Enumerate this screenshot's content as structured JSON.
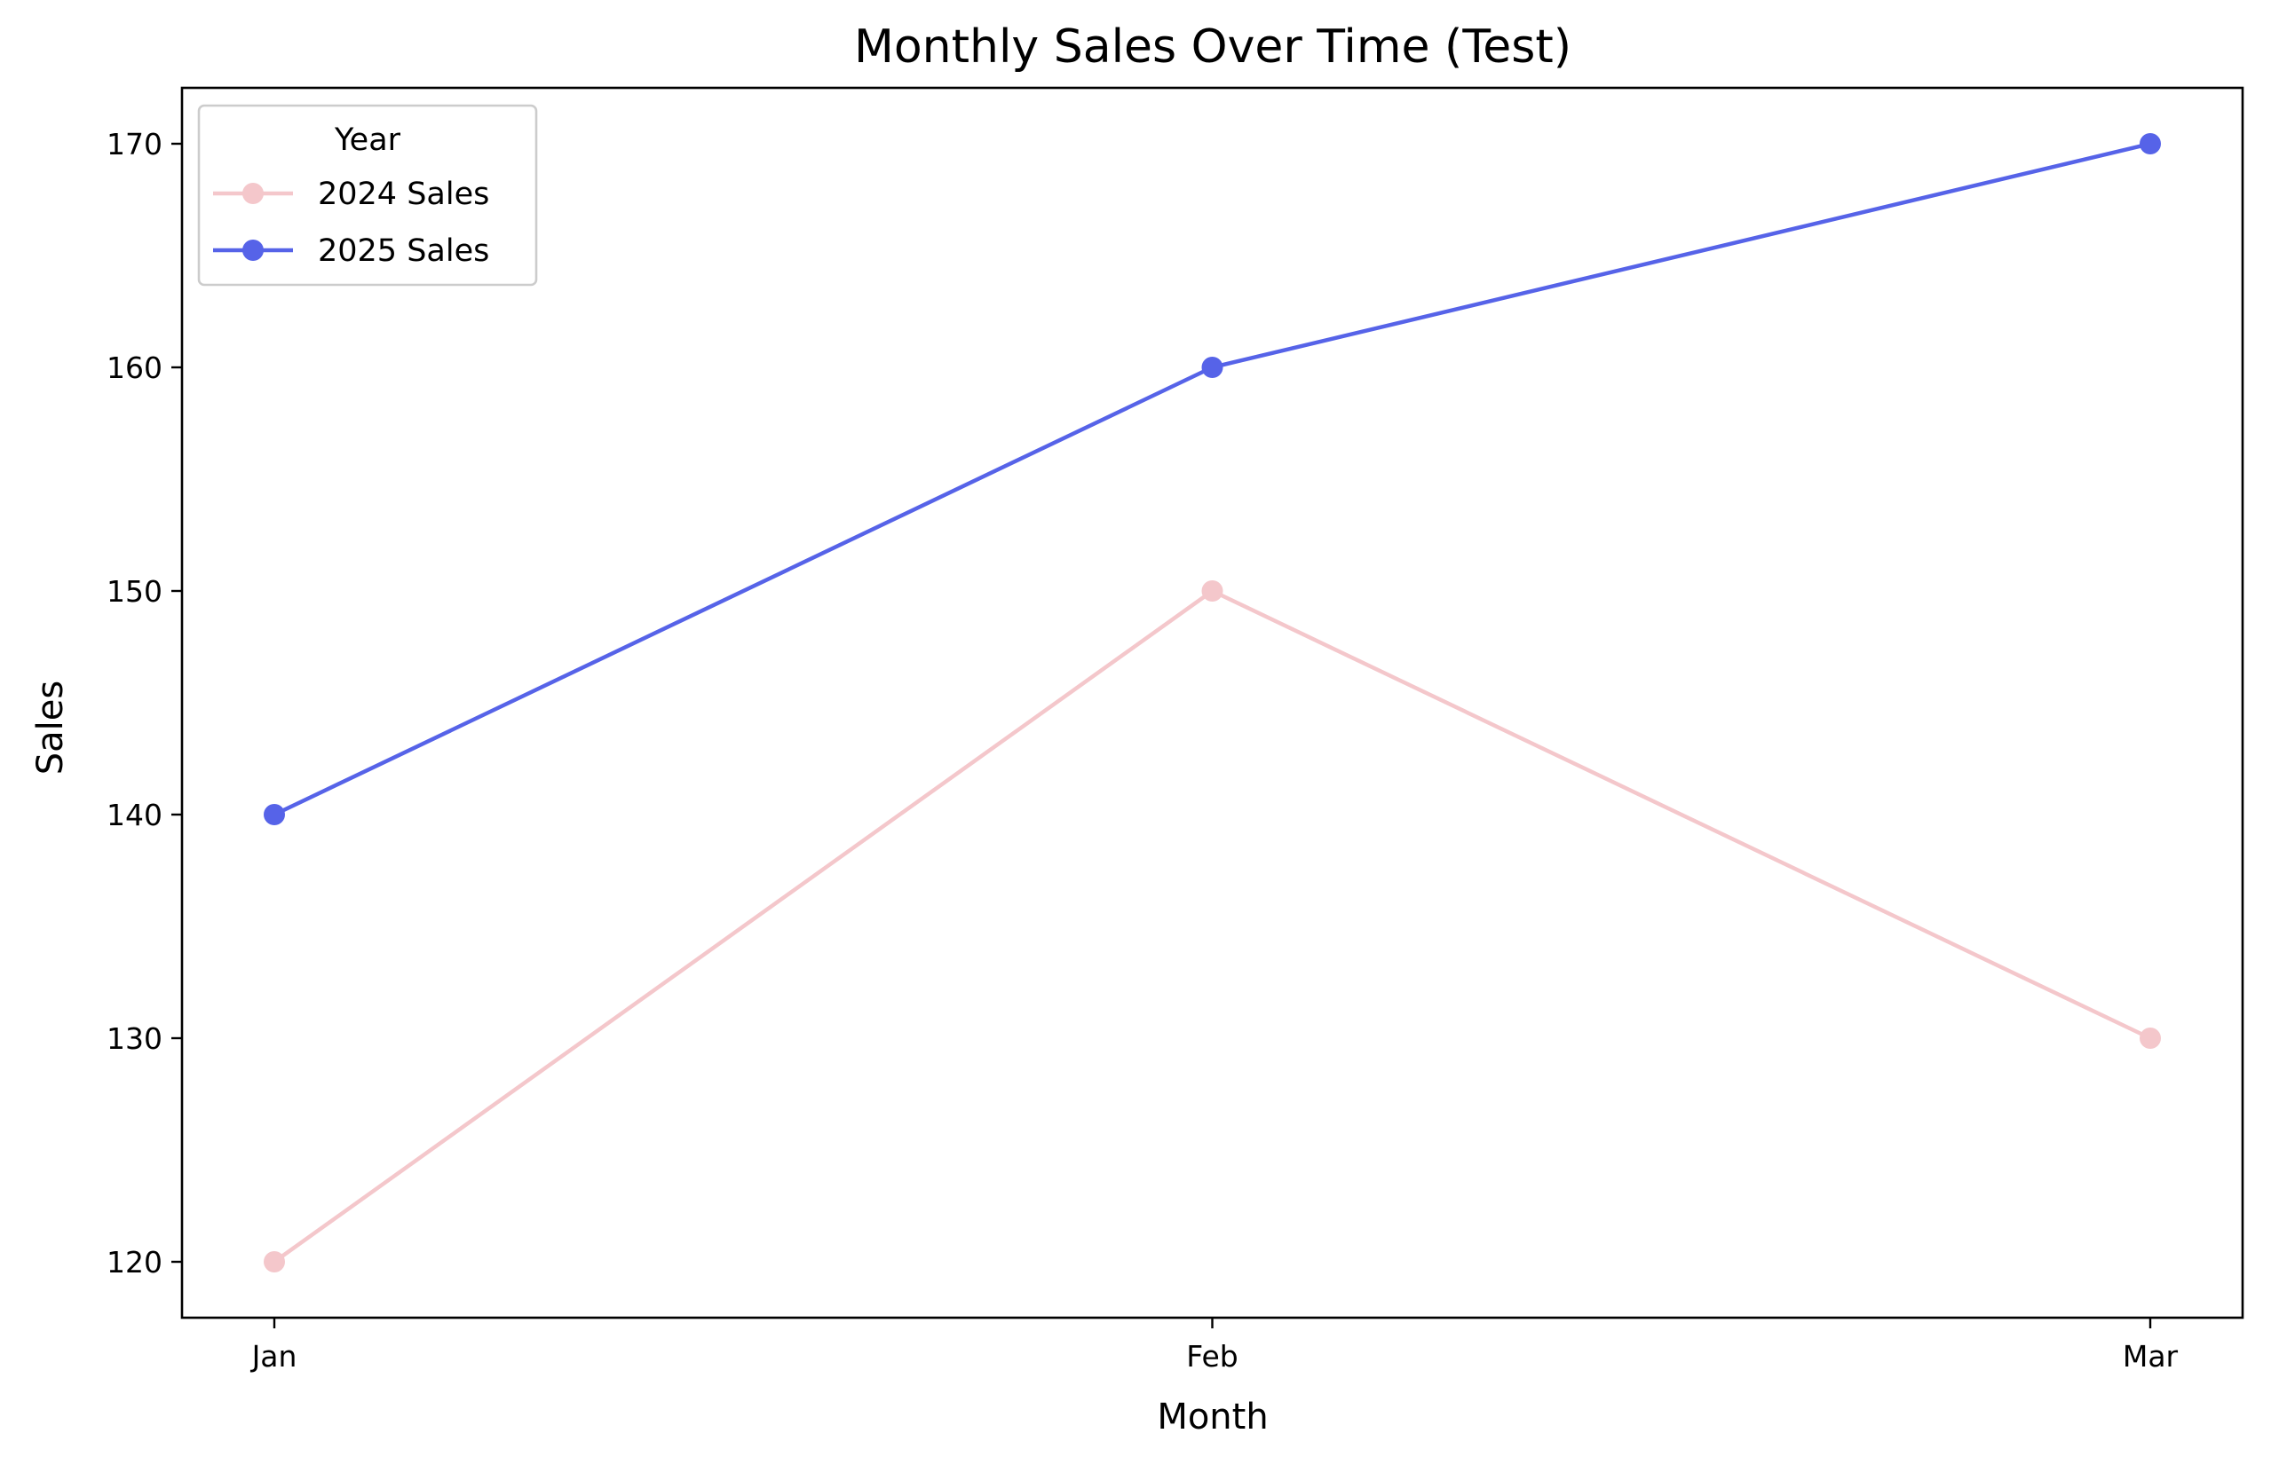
{
  "chart_data": {
    "type": "line",
    "title": "Monthly Sales Over Time (Test)",
    "xlabel": "Month",
    "ylabel": "Sales",
    "categories": [
      "Jan",
      "Feb",
      "Mar"
    ],
    "ylim": [
      117.5,
      172.5
    ],
    "yticks": [
      120,
      130,
      140,
      150,
      160,
      170
    ],
    "grid": false,
    "legend": {
      "title": "Year",
      "position": "top-left"
    },
    "series": [
      {
        "name": "2024 Sales",
        "values": [
          120,
          150,
          130
        ],
        "color": "#f4c7cb",
        "marker": "circle"
      },
      {
        "name": "2025 Sales",
        "values": [
          140,
          160,
          170
        ],
        "color": "#5663e8",
        "marker": "circle"
      }
    ]
  }
}
